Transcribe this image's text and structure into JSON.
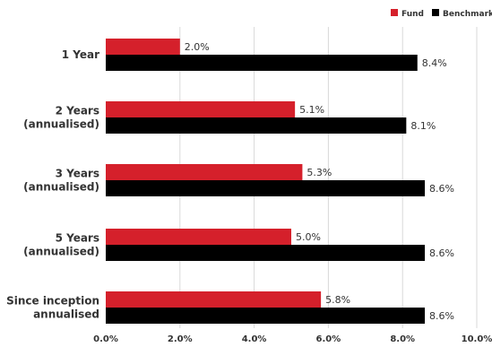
{
  "chart_data": {
    "type": "bar",
    "orientation": "horizontal",
    "categories": [
      [
        "1 Year"
      ],
      [
        "2 Years",
        "(annualised)"
      ],
      [
        "3 Years",
        "(annualised)"
      ],
      [
        "5 Years",
        "(annualised)"
      ],
      [
        "Since inception",
        "annualised"
      ]
    ],
    "series": [
      {
        "name": "Fund",
        "color": "#d5202b",
        "values": [
          2.0,
          5.1,
          5.3,
          5.0,
          5.8
        ],
        "labels": [
          "2.0%",
          "5.1%",
          "5.3%",
          "5.0%",
          "5.8%"
        ]
      },
      {
        "name": "Benchmark",
        "color": "#000000",
        "values": [
          8.4,
          8.1,
          8.6,
          8.6,
          8.6
        ],
        "labels": [
          "8.4%",
          "8.1%",
          "8.6%",
          "8.6%",
          "8.6%"
        ]
      }
    ],
    "x_axis": {
      "ticks": [
        0,
        2,
        4,
        6,
        8,
        10
      ],
      "tick_labels": [
        "0.0%",
        "2.0%",
        "4.0%",
        "6.0%",
        "8.0%",
        "10.0%"
      ],
      "range": [
        0,
        10
      ]
    },
    "grid": true,
    "legend_position": "top-right",
    "title": "",
    "xlabel": "",
    "ylabel": ""
  }
}
